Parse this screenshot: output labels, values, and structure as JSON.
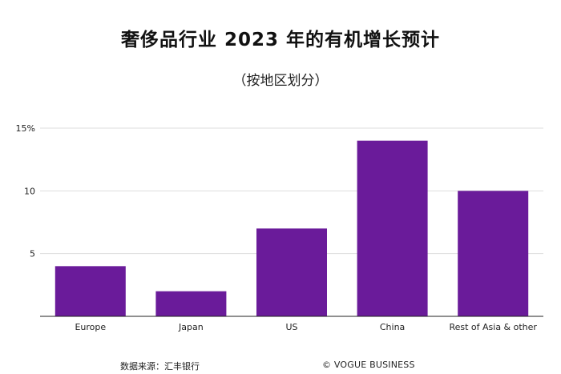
{
  "title": "奢侈品行业 2023 年的有机增长预计",
  "subtitle": "（按地区划分）",
  "chart_data": {
    "type": "bar",
    "categories": [
      "Europe",
      "Japan",
      "US",
      "China",
      "Rest of Asia & other"
    ],
    "values": [
      4,
      2,
      7,
      14,
      10
    ],
    "ylim": [
      0,
      15
    ],
    "yticks": [
      5,
      10,
      15
    ],
    "ytick_labels": [
      "5",
      "10",
      "15%"
    ],
    "bar_color": "#6a1b9a",
    "grid": true
  },
  "footer": {
    "source": "数据来源：汇丰银行",
    "brand": "© VOGUE BUSINESS"
  }
}
